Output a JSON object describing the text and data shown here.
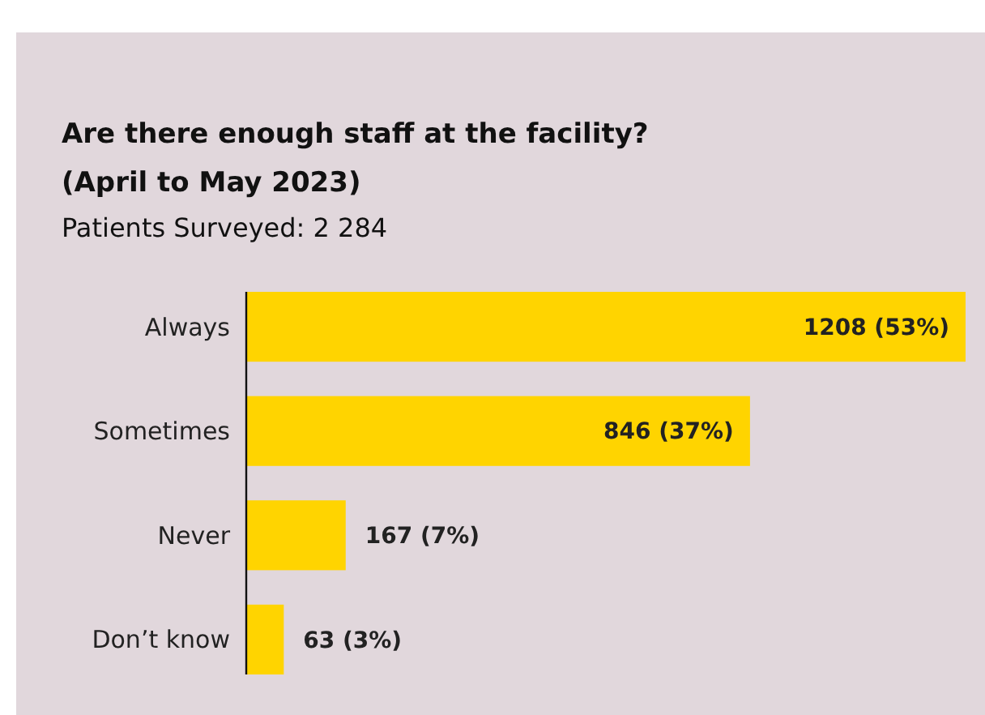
{
  "chart_data": {
    "type": "bar",
    "orientation": "horizontal",
    "title": "Are there enough staff at the facility?\n(April to May 2023)",
    "subtitle": "Patients Surveyed: 2 284",
    "categories": [
      "Always",
      "Sometimes",
      "Never",
      "Don’t know"
    ],
    "values": [
      1208,
      846,
      167,
      63
    ],
    "value_labels": [
      "1208 (53%)",
      "846 (37%)",
      "167 (7%)",
      "63 (3%)"
    ],
    "color": "#ffd400"
  }
}
